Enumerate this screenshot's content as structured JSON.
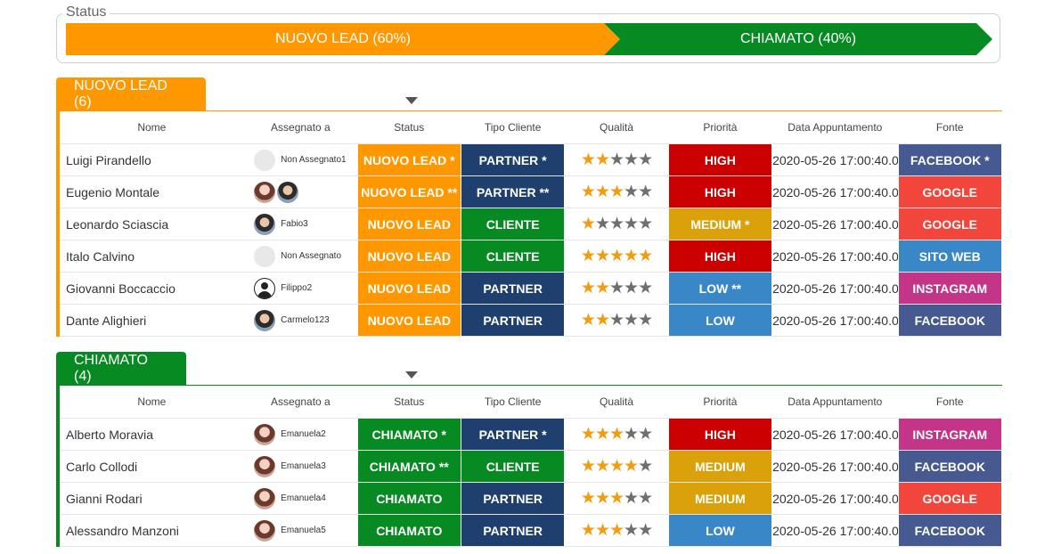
{
  "status_section": {
    "legend": "Status",
    "segments": [
      {
        "label": "NUOVO LEAD (60%)",
        "percent": 60,
        "color": "#ff9800"
      },
      {
        "label": "CHIAMATO (40%)",
        "percent": 40,
        "color": "#078a22"
      }
    ]
  },
  "columns": [
    "Nome",
    "Assegnato a",
    "Status",
    "Tipo Cliente",
    "Qualità",
    "Priorità",
    "Data Appuntamento",
    "Fonte"
  ],
  "groups": [
    {
      "title": "NUOVO LEAD (6)",
      "color": "#ff9800",
      "rows": [
        {
          "name": "Luigi Pirandello",
          "assignees": [
            "empty"
          ],
          "assignee_name": "Non Assegnato1",
          "status": "NUOVO LEAD *",
          "status_color": "orange",
          "tipo": "PARTNER *",
          "tipo_color": "navy",
          "stars": 2,
          "priority": "HIGH",
          "priority_color": "red",
          "date": "2020-05-26 17:00:40.0",
          "source": "FACEBOOK *",
          "source_color": "fb"
        },
        {
          "name": "Eugenio Montale",
          "assignees": [
            "photo",
            "photo2"
          ],
          "assignee_name": "",
          "status": "NUOVO LEAD **",
          "status_color": "orange",
          "tipo": "PARTNER **",
          "tipo_color": "navy",
          "stars": 3,
          "priority": "HIGH",
          "priority_color": "red",
          "date": "2020-05-26 17:00:40.0",
          "source": "GOOGLE",
          "source_color": "google"
        },
        {
          "name": "Leonardo Sciascia",
          "assignees": [
            "photo2"
          ],
          "assignee_name": "Fabio3",
          "status": "NUOVO LEAD",
          "status_color": "orange",
          "tipo": "CLIENTE",
          "tipo_color": "green",
          "stars": 1,
          "priority": "MEDIUM *",
          "priority_color": "gold",
          "date": "2020-05-26 17:00:40.0",
          "source": "GOOGLE",
          "source_color": "google"
        },
        {
          "name": "Italo Calvino",
          "assignees": [
            "empty"
          ],
          "assignee_name": "Non Assegnato",
          "status": "NUOVO LEAD",
          "status_color": "orange",
          "tipo": "CLIENTE",
          "tipo_color": "green",
          "stars": 5,
          "priority": "HIGH",
          "priority_color": "red",
          "date": "2020-05-26 17:00:40.0",
          "source": "SITO WEB",
          "source_color": "web"
        },
        {
          "name": "Giovanni Boccaccio",
          "assignees": [
            "user"
          ],
          "assignee_name": "Filippo2",
          "status": "NUOVO LEAD",
          "status_color": "orange",
          "tipo": "PARTNER",
          "tipo_color": "navy",
          "stars": 2,
          "priority": "LOW **",
          "priority_color": "blue",
          "date": "2020-05-26 17:00:40.0",
          "source": "INSTAGRAM",
          "source_color": "ig"
        },
        {
          "name": "Dante Alighieri",
          "assignees": [
            "photo2"
          ],
          "assignee_name": "Carmelo123",
          "status": "NUOVO LEAD",
          "status_color": "orange",
          "tipo": "PARTNER",
          "tipo_color": "navy",
          "stars": 2,
          "priority": "LOW",
          "priority_color": "blue",
          "date": "2020-05-26 17:00:40.0",
          "source": "FACEBOOK",
          "source_color": "fb"
        }
      ]
    },
    {
      "title": "CHIAMATO (4)",
      "color": "#078a22",
      "rows": [
        {
          "name": "Alberto Moravia",
          "assignees": [
            "photo"
          ],
          "assignee_name": "Emanuela2",
          "status": "CHIAMATO *",
          "status_color": "green",
          "tipo": "PARTNER *",
          "tipo_color": "navy",
          "stars": 3,
          "priority": "HIGH",
          "priority_color": "red",
          "date": "2020-05-26 17:00:40.0",
          "source": "INSTAGRAM",
          "source_color": "ig"
        },
        {
          "name": "Carlo Collodi",
          "assignees": [
            "photo"
          ],
          "assignee_name": "Emanuela3",
          "status": "CHIAMATO **",
          "status_color": "green",
          "tipo": "CLIENTE",
          "tipo_color": "green",
          "stars": 4,
          "priority": "MEDIUM",
          "priority_color": "gold",
          "date": "2020-05-26 17:00:40.0",
          "source": "FACEBOOK",
          "source_color": "fb"
        },
        {
          "name": "Gianni Rodari",
          "assignees": [
            "photo"
          ],
          "assignee_name": "Emanuela4",
          "status": "CHIAMATO",
          "status_color": "green",
          "tipo": "PARTNER",
          "tipo_color": "navy",
          "stars": 3,
          "priority": "MEDIUM",
          "priority_color": "gold",
          "date": "2020-05-26 17:00:40.0",
          "source": "GOOGLE",
          "source_color": "google"
        },
        {
          "name": "Alessandro Manzoni",
          "assignees": [
            "photo"
          ],
          "assignee_name": "Emanuela5",
          "status": "CHIAMATO",
          "status_color": "green",
          "tipo": "PARTNER",
          "tipo_color": "navy",
          "stars": 3,
          "priority": "LOW",
          "priority_color": "blue",
          "date": "2020-05-26 17:00:40.0",
          "source": "FACEBOOK",
          "source_color": "fb"
        }
      ]
    }
  ]
}
